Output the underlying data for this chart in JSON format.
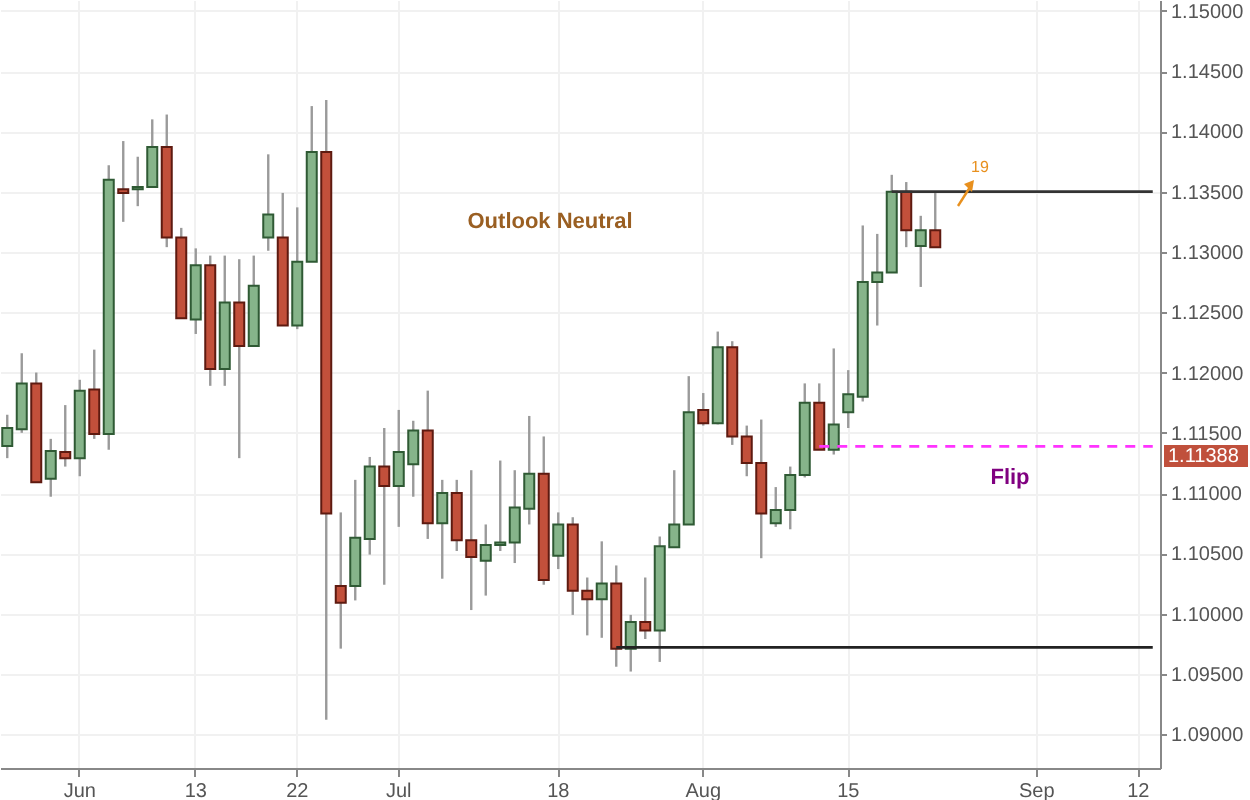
{
  "chart_data": {
    "type": "candlestick",
    "categories": [
      null,
      null,
      null,
      null,
      null,
      "Jun",
      null,
      null,
      null,
      null,
      null,
      null,
      null,
      "13",
      null,
      null,
      null,
      null,
      null,
      null,
      "22",
      null,
      null,
      null,
      null,
      null,
      null,
      "Jul",
      null,
      null,
      null,
      null,
      null,
      null,
      null,
      null,
      null,
      null,
      "18",
      null,
      null,
      null,
      null,
      null,
      null,
      null,
      null,
      null,
      "Aug",
      null,
      null,
      null,
      null,
      null,
      null,
      null,
      null,
      null,
      "15",
      null,
      null,
      null,
      null,
      null,
      null,
      null,
      null,
      null,
      null,
      null,
      null,
      "Sep",
      null,
      null,
      null,
      null,
      null,
      null,
      "12",
      null
    ],
    "ohlc": [
      [
        1.1139,
        1.1165,
        1.1129,
        1.1154
      ],
      [
        1.1153,
        1.1216,
        1.115,
        1.1191
      ],
      [
        1.1191,
        1.12,
        1.1109,
        1.1109
      ],
      [
        1.1112,
        1.1145,
        1.1097,
        1.1135
      ],
      [
        1.1134,
        1.1173,
        1.1122,
        1.1129
      ],
      [
        1.1129,
        1.1194,
        1.1114,
        1.1185
      ],
      [
        1.1186,
        1.1219,
        1.1145,
        1.1149
      ],
      [
        1.1149,
        1.1372,
        1.1136,
        1.136
      ],
      [
        1.1352,
        1.1392,
        1.1325,
        1.1349
      ],
      [
        1.1352,
        1.1379,
        1.1338,
        1.1354
      ],
      [
        1.1354,
        1.141,
        1.1354,
        1.1387
      ],
      [
        1.1387,
        1.1414,
        1.1304,
        1.1312
      ],
      [
        1.1312,
        1.132,
        1.1245,
        1.1245
      ],
      [
        1.1244,
        1.1303,
        1.1232,
        1.1289
      ],
      [
        1.1289,
        1.1297,
        1.1189,
        1.1203
      ],
      [
        1.1203,
        1.1297,
        1.1189,
        1.1258
      ],
      [
        1.1258,
        1.1294,
        1.1129,
        1.1222
      ],
      [
        1.1222,
        1.1297,
        1.1222,
        1.1272
      ],
      [
        1.1312,
        1.1381,
        1.1301,
        1.1331
      ],
      [
        1.1312,
        1.1349,
        1.1239,
        1.1239
      ],
      [
        1.1239,
        1.1337,
        1.1236,
        1.1292
      ],
      [
        1.1292,
        1.1421,
        1.1292,
        1.1383
      ],
      [
        1.1383,
        1.1426,
        1.0912,
        1.1083
      ],
      [
        1.1023,
        1.1084,
        1.0971,
        1.1009
      ],
      [
        1.1023,
        1.1111,
        1.1011,
        1.1063
      ],
      [
        1.1062,
        1.113,
        1.1049,
        1.1122
      ],
      [
        1.1122,
        1.1154,
        1.1024,
        1.1106
      ],
      [
        1.1106,
        1.1169,
        1.1072,
        1.1134
      ],
      [
        1.1124,
        1.116,
        1.1097,
        1.1152
      ],
      [
        1.1152,
        1.1185,
        1.1062,
        1.1075
      ],
      [
        1.1075,
        1.1111,
        1.1029,
        1.11
      ],
      [
        1.11,
        1.1111,
        1.1052,
        1.1061
      ],
      [
        1.1061,
        1.1119,
        1.1003,
        1.1047
      ],
      [
        1.1044,
        1.1074,
        1.1015,
        1.1057
      ],
      [
        1.1057,
        1.1127,
        1.1052,
        1.1059
      ],
      [
        1.1059,
        1.1119,
        1.1042,
        1.1088
      ],
      [
        1.1087,
        1.1164,
        1.1074,
        1.1116
      ],
      [
        1.1116,
        1.1147,
        1.1024,
        1.1028
      ],
      [
        1.1048,
        1.1084,
        1.1037,
        1.1074
      ],
      [
        1.1074,
        1.108,
        1.0999,
        1.1019
      ],
      [
        1.1019,
        1.103,
        1.0982,
        1.1012
      ],
      [
        1.1012,
        1.106,
        1.098,
        1.1025
      ],
      [
        1.1025,
        1.104,
        1.0956,
        1.0971
      ],
      [
        1.0971,
        1.0999,
        1.0952,
        1.0993
      ],
      [
        1.0993,
        1.103,
        1.0979,
        1.0986
      ],
      [
        1.0986,
        1.1064,
        1.096,
        1.1056
      ],
      [
        1.1055,
        1.1119,
        1.1055,
        1.1074
      ],
      [
        1.1074,
        1.1197,
        1.1074,
        1.1167
      ],
      [
        1.1169,
        1.1183,
        1.1156,
        1.1158
      ],
      [
        1.1158,
        1.1234,
        1.1157,
        1.1221
      ],
      [
        1.1221,
        1.1226,
        1.114,
        1.1147
      ],
      [
        1.1147,
        1.1156,
        1.1114,
        1.1125
      ],
      [
        1.1125,
        1.1161,
        1.1046,
        1.1083
      ],
      [
        1.1075,
        1.1105,
        1.1072,
        1.1086
      ],
      [
        1.1086,
        1.1122,
        1.107,
        1.1115
      ],
      [
        1.1115,
        1.1191,
        1.1113,
        1.1175
      ],
      [
        1.1175,
        1.1191,
        1.1136,
        1.1136
      ],
      [
        1.1136,
        1.122,
        1.1132,
        1.1157
      ],
      [
        1.1167,
        1.1202,
        1.1154,
        1.1182
      ],
      [
        1.118,
        1.1322,
        1.1176,
        1.1275
      ],
      [
        1.1275,
        1.1315,
        1.1239,
        1.1283
      ],
      [
        1.1283,
        1.1364,
        1.1283,
        1.135
      ],
      [
        1.135,
        1.1358,
        1.1304,
        1.1318
      ],
      [
        1.1305,
        1.133,
        1.1271,
        1.1318
      ],
      [
        1.1318,
        1.135,
        1.1304,
        1.1304
      ],
      null,
      null,
      null,
      null,
      null,
      null,
      null,
      null,
      null,
      null,
      null,
      null,
      null,
      null,
      null
    ],
    "series": [
      {
        "type": "line",
        "color": "#333333",
        "values": [
          null,
          null,
          null,
          null,
          null,
          null,
          null,
          null,
          null,
          null,
          null,
          null,
          null,
          null,
          null,
          null,
          null,
          null,
          null,
          null,
          null,
          null,
          null,
          null,
          null,
          null,
          null,
          null,
          null,
          null,
          null,
          null,
          null,
          null,
          null,
          null,
          null,
          null,
          null,
          null,
          null,
          null,
          null,
          null,
          null,
          null,
          null,
          null,
          null,
          null,
          null,
          null,
          null,
          null,
          null,
          null,
          null,
          null,
          null,
          null,
          null,
          1.135,
          1.135,
          1.135,
          1.135,
          1.135,
          1.135,
          1.135,
          1.135,
          1.135,
          1.135,
          1.135,
          1.135,
          1.135,
          1.135,
          1.135,
          1.135,
          1.135,
          1.135,
          1.135
        ]
      },
      {
        "type": "line",
        "color": "#222222",
        "values": [
          null,
          null,
          null,
          null,
          null,
          null,
          null,
          null,
          null,
          null,
          null,
          null,
          null,
          null,
          null,
          null,
          null,
          null,
          null,
          null,
          null,
          null,
          null,
          null,
          null,
          null,
          null,
          null,
          null,
          null,
          null,
          null,
          null,
          null,
          null,
          null,
          null,
          null,
          null,
          null,
          null,
          null,
          1.0972,
          1.0972,
          1.0972,
          1.0972,
          1.0972,
          1.0972,
          1.0972,
          1.0972,
          1.0972,
          1.0972,
          1.0972,
          1.0972,
          1.0972,
          1.0972,
          1.0972,
          1.0972,
          1.0972,
          1.0972,
          1.0972,
          1.0972,
          1.0972,
          1.0972,
          1.0972,
          1.0972,
          1.0972,
          1.0972,
          1.0972,
          1.0972,
          1.0972,
          1.0972,
          1.0972,
          1.0972,
          1.0972,
          1.0972,
          1.0972,
          1.0972,
          1.0972,
          1.0972
        ]
      },
      {
        "type": "line",
        "color": "#ff33ff",
        "line_style": "dashed",
        "values": [
          null,
          null,
          null,
          null,
          null,
          null,
          null,
          null,
          null,
          null,
          null,
          null,
          null,
          null,
          null,
          null,
          null,
          null,
          null,
          null,
          null,
          null,
          null,
          null,
          null,
          null,
          null,
          null,
          null,
          null,
          null,
          null,
          null,
          null,
          null,
          null,
          null,
          null,
          null,
          null,
          null,
          null,
          null,
          null,
          null,
          null,
          null,
          null,
          null,
          null,
          null,
          null,
          null,
          null,
          null,
          null,
          1.11388,
          1.11388,
          1.11388,
          1.11388,
          1.11388,
          1.11388,
          1.11388,
          1.11388,
          1.11388,
          1.11388,
          1.11388,
          1.11388,
          1.11388,
          1.11388,
          1.11388,
          1.11388,
          1.11388,
          1.11388,
          1.11388,
          1.11388,
          1.11388,
          1.11388,
          1.11388,
          1.11388
        ]
      }
    ],
    "annotations": [
      "Outlook Neutral",
      "Flip",
      "19",
      "1.11388"
    ],
    "ylim": [
      1.0872,
      1.1509
    ],
    "yticks": [
      {
        "value": 1.09,
        "label": "1.09000"
      },
      {
        "value": 1.095,
        "label": "1.09500"
      },
      {
        "value": 1.1,
        "label": "1.10000"
      },
      {
        "value": 1.105,
        "label": "1.10500"
      },
      {
        "value": 1.11,
        "label": "1.11000"
      },
      {
        "value": 1.115,
        "label": "1.11500"
      },
      {
        "value": 1.12,
        "label": "1.12000"
      },
      {
        "value": 1.125,
        "label": "1.12500"
      },
      {
        "value": 1.13,
        "label": "1.13000"
      },
      {
        "value": 1.135,
        "label": "1.13500"
      },
      {
        "value": 1.14,
        "label": "1.14000"
      },
      {
        "value": 1.145,
        "label": "1.14500"
      },
      {
        "value": 1.15,
        "label": "1.15000"
      }
    ],
    "grid": true
  }
}
